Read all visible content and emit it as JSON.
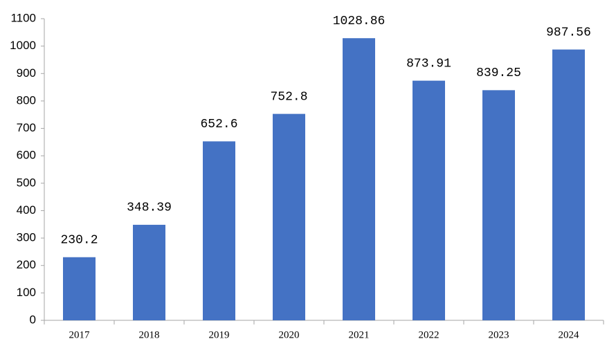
{
  "chart_data": {
    "type": "bar",
    "categories": [
      "2017",
      "2018",
      "2019",
      "2020",
      "2021",
      "2022",
      "2023",
      "2024"
    ],
    "values": [
      230.2,
      348.39,
      652.6,
      752.8,
      1028.86,
      873.91,
      839.25,
      987.56
    ],
    "color": "#4472c4",
    "ylim": [
      0,
      1100
    ],
    "yticks": [
      0,
      100,
      200,
      300,
      400,
      500,
      600,
      700,
      800,
      900,
      1000,
      1100
    ],
    "grid": false
  }
}
